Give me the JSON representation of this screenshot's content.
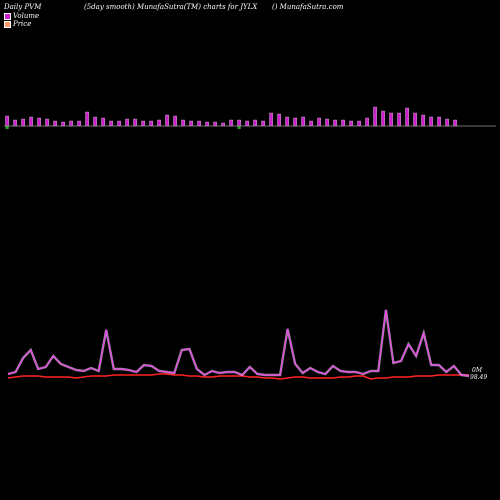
{
  "header": {
    "left": "Daily PVM",
    "center": "(5day smooth) MunafaSutra(TM) charts for JYLX",
    "right": "() MunafaSutra.com"
  },
  "colors": {
    "background": "#000000",
    "volume": "#cc22cc",
    "volume_down": "#22aa22",
    "pvm_line": "#ee44ee",
    "price_line": "#ff2222",
    "baseline": "#999999"
  },
  "chart_data": [
    {
      "type": "bar",
      "series": [
        {
          "name": "Volume",
          "values": [
            10,
            6,
            7,
            9,
            8,
            7,
            5,
            4,
            5,
            5,
            14,
            9,
            8,
            5,
            5,
            7,
            7,
            5,
            5,
            6,
            11,
            10,
            6,
            5,
            5,
            4,
            4,
            3,
            6,
            6,
            5,
            6,
            5,
            13,
            12,
            9,
            8,
            9,
            5,
            8,
            7,
            6,
            6,
            5,
            5,
            8,
            19,
            15,
            13,
            13,
            18,
            13,
            11,
            9,
            9,
            7,
            6
          ]
        }
      ],
      "down_bars": [
        0,
        29
      ],
      "y_baseline_label": ""
    },
    {
      "type": "line",
      "series": [
        {
          "name": "PVM",
          "values": [
            4,
            6,
            20,
            28,
            9,
            11,
            22,
            14,
            11,
            8,
            7,
            10,
            7,
            48,
            9,
            9,
            8,
            6,
            13,
            12,
            7,
            6,
            5,
            28,
            29,
            9,
            3,
            7,
            5,
            6,
            6,
            3,
            11,
            4,
            3,
            3,
            3,
            49,
            14,
            5,
            10,
            6,
            4,
            12,
            7,
            6,
            6,
            4,
            7,
            7,
            68,
            15,
            17,
            34,
            22,
            45,
            13,
            13,
            6,
            12,
            3,
            2
          ]
        },
        {
          "name": "Price",
          "values": [
            2,
            3,
            4,
            4,
            4,
            3,
            3,
            3,
            3,
            2,
            3,
            4,
            4,
            4,
            5,
            5,
            5,
            5,
            5,
            5,
            6,
            6,
            5,
            5,
            4,
            4,
            3,
            3,
            4,
            4,
            4,
            4,
            3,
            3,
            2,
            2,
            1,
            2,
            3,
            3,
            2,
            2,
            2,
            2,
            3,
            3,
            4,
            4,
            1,
            2,
            2,
            3,
            3,
            3,
            4,
            4,
            4,
            5,
            5,
            5,
            5,
            5
          ]
        }
      ],
      "end_labels": [
        "0M",
        "98.49"
      ]
    }
  ],
  "legend": {
    "volume": "Volume",
    "price": "Price"
  }
}
